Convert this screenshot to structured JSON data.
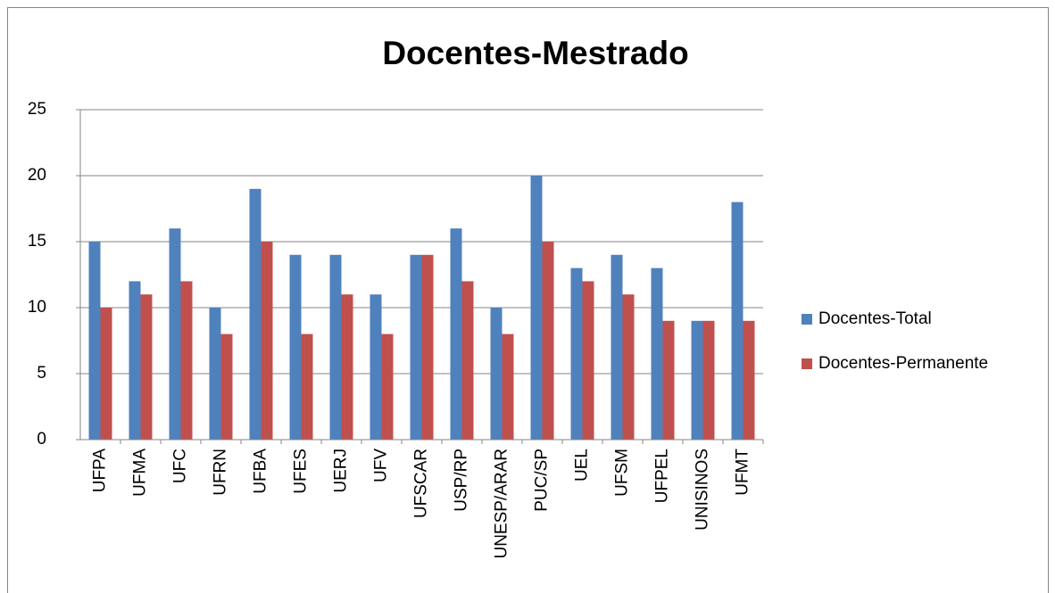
{
  "chart_data": {
    "type": "bar",
    "title": "Docentes-Mestrado",
    "categories": [
      "UFPA",
      "UFMA",
      "UFC",
      "UFRN",
      "UFBA",
      "UFES",
      "UERJ",
      "UFV",
      "UFSCAR",
      "USP/RP",
      "UNESP/ARAR",
      "PUC/SP",
      "UEL",
      "UFSM",
      "UFPEL",
      "UNISINOS",
      "UFMT"
    ],
    "series": [
      {
        "name": "Docentes-Total",
        "color": "#4f81bd",
        "values": [
          15,
          12,
          16,
          10,
          19,
          14,
          14,
          11,
          14,
          16,
          10,
          20,
          13,
          14,
          13,
          9,
          18
        ]
      },
      {
        "name": "Docentes-Permanente",
        "color": "#c0504d",
        "values": [
          10,
          11,
          12,
          8,
          15,
          8,
          11,
          8,
          14,
          12,
          8,
          15,
          12,
          11,
          9,
          9,
          9
        ]
      }
    ],
    "ylim": [
      0,
      25
    ],
    "yticks": [
      0,
      5,
      10,
      15,
      20,
      25
    ],
    "grid": true,
    "legend": "right"
  }
}
